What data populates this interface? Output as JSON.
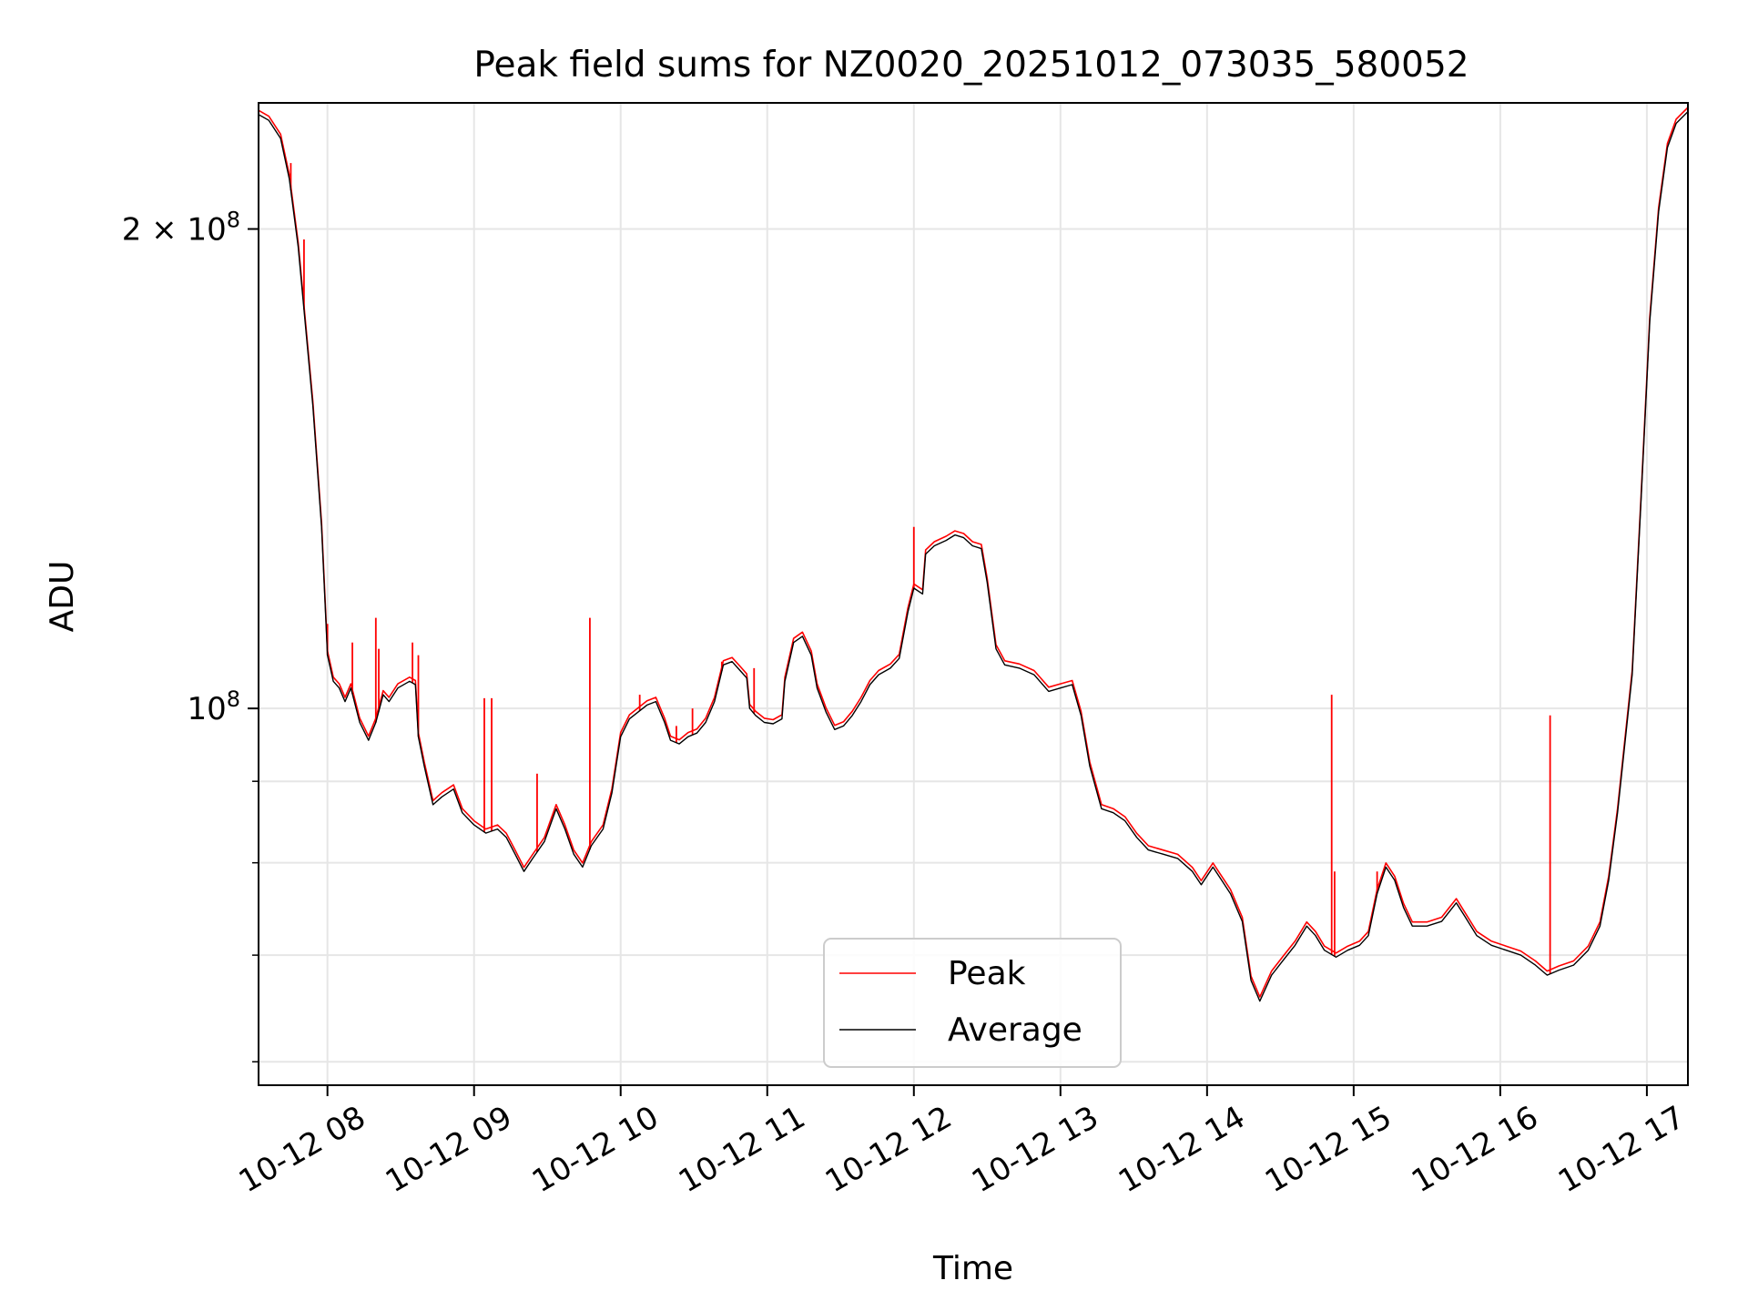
{
  "chart_data": {
    "type": "line",
    "title": "Peak field sums for NZ0020_20251012_073035_580052",
    "xlabel": "Time",
    "ylabel": "ADU",
    "yscale": "log",
    "ylim": [
      58000000,
      240000000
    ],
    "xlim_hours": [
      7.53,
      17.28
    ],
    "grid": true,
    "legend_position": "lower center",
    "x_ticks": [
      {
        "hour": 8,
        "label": "10-12 08"
      },
      {
        "hour": 9,
        "label": "10-12 09"
      },
      {
        "hour": 10,
        "label": "10-12 10"
      },
      {
        "hour": 11,
        "label": "10-12 11"
      },
      {
        "hour": 12,
        "label": "10-12 12"
      },
      {
        "hour": 13,
        "label": "10-12 13"
      },
      {
        "hour": 14,
        "label": "10-12 14"
      },
      {
        "hour": 15,
        "label": "10-12 15"
      },
      {
        "hour": 16,
        "label": "10-12 16"
      },
      {
        "hour": 17,
        "label": "10-12 17"
      }
    ],
    "y_ticks": [
      {
        "value": 200000000,
        "mantissa": "2",
        "times": "×",
        "base": "10",
        "exp": "8"
      },
      {
        "value": 100000000,
        "mantissa": "",
        "times": "",
        "base": "10",
        "exp": "8"
      }
    ],
    "y_minor_ticks": [
      60000000,
      70000000,
      80000000,
      90000000
    ],
    "series": [
      {
        "name": "Peak",
        "color": "#ff0000",
        "spikes": [
          {
            "x": 7.75,
            "y": 220000000
          },
          {
            "x": 7.84,
            "y": 197000000
          },
          {
            "x": 8.0,
            "y": 113000000
          },
          {
            "x": 8.17,
            "y": 110000000
          },
          {
            "x": 8.33,
            "y": 114000000
          },
          {
            "x": 8.35,
            "y": 109000000
          },
          {
            "x": 8.58,
            "y": 110000000
          },
          {
            "x": 8.62,
            "y": 108000000
          },
          {
            "x": 9.07,
            "y": 101500000
          },
          {
            "x": 9.12,
            "y": 101500000
          },
          {
            "x": 9.43,
            "y": 91000000
          },
          {
            "x": 9.79,
            "y": 114000000
          },
          {
            "x": 10.13,
            "y": 102000000
          },
          {
            "x": 10.38,
            "y": 97500000
          },
          {
            "x": 10.49,
            "y": 100000000
          },
          {
            "x": 10.69,
            "y": 107000000
          },
          {
            "x": 10.91,
            "y": 106000000
          },
          {
            "x": 12.0,
            "y": 130000000
          },
          {
            "x": 14.85,
            "y": 102000000
          },
          {
            "x": 14.87,
            "y": 79000000
          },
          {
            "x": 15.16,
            "y": 79000000
          },
          {
            "x": 16.34,
            "y": 99000000
          }
        ]
      },
      {
        "name": "Average",
        "color": "#000000",
        "points": [
          [
            7.53,
            236000000
          ],
          [
            7.6,
            234000000
          ],
          [
            7.68,
            228000000
          ],
          [
            7.74,
            215000000
          ],
          [
            7.8,
            195000000
          ],
          [
            7.84,
            178000000
          ],
          [
            7.9,
            155000000
          ],
          [
            7.96,
            130000000
          ],
          [
            8.0,
            108000000
          ],
          [
            8.04,
            104000000
          ],
          [
            8.08,
            103000000
          ],
          [
            8.12,
            101000000
          ],
          [
            8.16,
            103000000
          ],
          [
            8.22,
            98000000
          ],
          [
            8.28,
            95500000
          ],
          [
            8.33,
            98000000
          ],
          [
            8.38,
            102000000
          ],
          [
            8.42,
            101000000
          ],
          [
            8.48,
            103000000
          ],
          [
            8.56,
            104000000
          ],
          [
            8.6,
            103500000
          ],
          [
            8.62,
            96000000
          ],
          [
            8.66,
            92000000
          ],
          [
            8.72,
            87000000
          ],
          [
            8.78,
            88000000
          ],
          [
            8.86,
            89000000
          ],
          [
            8.92,
            86000000
          ],
          [
            9.0,
            84500000
          ],
          [
            9.08,
            83500000
          ],
          [
            9.16,
            84000000
          ],
          [
            9.22,
            83000000
          ],
          [
            9.28,
            81000000
          ],
          [
            9.34,
            79000000
          ],
          [
            9.4,
            80500000
          ],
          [
            9.48,
            82500000
          ],
          [
            9.56,
            86500000
          ],
          [
            9.62,
            84000000
          ],
          [
            9.68,
            81000000
          ],
          [
            9.74,
            79500000
          ],
          [
            9.8,
            82000000
          ],
          [
            9.88,
            84000000
          ],
          [
            9.94,
            88500000
          ],
          [
            10.0,
            96000000
          ],
          [
            10.06,
            98500000
          ],
          [
            10.12,
            99500000
          ],
          [
            10.18,
            100500000
          ],
          [
            10.24,
            101000000
          ],
          [
            10.3,
            98000000
          ],
          [
            10.34,
            95500000
          ],
          [
            10.4,
            95000000
          ],
          [
            10.46,
            96000000
          ],
          [
            10.52,
            96500000
          ],
          [
            10.58,
            98000000
          ],
          [
            10.64,
            101000000
          ],
          [
            10.7,
            106500000
          ],
          [
            10.76,
            107000000
          ],
          [
            10.82,
            105500000
          ],
          [
            10.86,
            104500000
          ],
          [
            10.88,
            100000000
          ],
          [
            10.92,
            99000000
          ],
          [
            10.98,
            98000000
          ],
          [
            11.04,
            97800000
          ],
          [
            11.1,
            98500000
          ],
          [
            11.12,
            104000000
          ],
          [
            11.18,
            110000000
          ],
          [
            11.24,
            111000000
          ],
          [
            11.3,
            108000000
          ],
          [
            11.34,
            103000000
          ],
          [
            11.4,
            99500000
          ],
          [
            11.46,
            97000000
          ],
          [
            11.52,
            97500000
          ],
          [
            11.58,
            99000000
          ],
          [
            11.64,
            101000000
          ],
          [
            11.7,
            103500000
          ],
          [
            11.76,
            105000000
          ],
          [
            11.84,
            106000000
          ],
          [
            11.9,
            107500000
          ],
          [
            11.96,
            115000000
          ],
          [
            12.0,
            119000000
          ],
          [
            12.06,
            118000000
          ],
          [
            12.08,
            125000000
          ],
          [
            12.14,
            126500000
          ],
          [
            12.22,
            127500000
          ],
          [
            12.28,
            128500000
          ],
          [
            12.34,
            128000000
          ],
          [
            12.4,
            126500000
          ],
          [
            12.46,
            126000000
          ],
          [
            12.5,
            120000000
          ],
          [
            12.56,
            109000000
          ],
          [
            12.62,
            106500000
          ],
          [
            12.72,
            106000000
          ],
          [
            12.82,
            105000000
          ],
          [
            12.92,
            102500000
          ],
          [
            13.0,
            103000000
          ],
          [
            13.08,
            103500000
          ],
          [
            13.14,
            99000000
          ],
          [
            13.2,
            92000000
          ],
          [
            13.28,
            86500000
          ],
          [
            13.36,
            86000000
          ],
          [
            13.44,
            85000000
          ],
          [
            13.52,
            83000000
          ],
          [
            13.6,
            81500000
          ],
          [
            13.7,
            81000000
          ],
          [
            13.8,
            80500000
          ],
          [
            13.9,
            79000000
          ],
          [
            13.96,
            77500000
          ],
          [
            14.04,
            79500000
          ],
          [
            14.1,
            78000000
          ],
          [
            14.16,
            76500000
          ],
          [
            14.24,
            73500000
          ],
          [
            14.3,
            67500000
          ],
          [
            14.36,
            65500000
          ],
          [
            14.44,
            68000000
          ],
          [
            14.52,
            69500000
          ],
          [
            14.6,
            71000000
          ],
          [
            14.68,
            73000000
          ],
          [
            14.74,
            72000000
          ],
          [
            14.8,
            70500000
          ],
          [
            14.88,
            69800000
          ],
          [
            14.96,
            70500000
          ],
          [
            15.04,
            71000000
          ],
          [
            15.1,
            72000000
          ],
          [
            15.16,
            76500000
          ],
          [
            15.22,
            79500000
          ],
          [
            15.28,
            78000000
          ],
          [
            15.34,
            75000000
          ],
          [
            15.4,
            73000000
          ],
          [
            15.5,
            73000000
          ],
          [
            15.6,
            73500000
          ],
          [
            15.7,
            75500000
          ],
          [
            15.76,
            74000000
          ],
          [
            15.84,
            72000000
          ],
          [
            15.94,
            71000000
          ],
          [
            16.04,
            70500000
          ],
          [
            16.14,
            70000000
          ],
          [
            16.24,
            69000000
          ],
          [
            16.32,
            68000000
          ],
          [
            16.4,
            68500000
          ],
          [
            16.5,
            69000000
          ],
          [
            16.6,
            70500000
          ],
          [
            16.68,
            73000000
          ],
          [
            16.74,
            78000000
          ],
          [
            16.8,
            86000000
          ],
          [
            16.86,
            97000000
          ],
          [
            16.9,
            105000000
          ],
          [
            16.96,
            135000000
          ],
          [
            17.02,
            175000000
          ],
          [
            17.08,
            205000000
          ],
          [
            17.14,
            225000000
          ],
          [
            17.2,
            233000000
          ],
          [
            17.28,
            237000000
          ]
        ]
      }
    ]
  }
}
